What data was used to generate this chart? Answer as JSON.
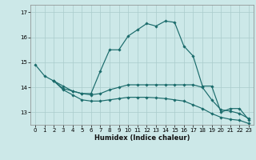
{
  "xlabel": "Humidex (Indice chaleur)",
  "background_color": "#cce8e8",
  "grid_color": "#aacccc",
  "line_color": "#1a6b6b",
  "xlim": [
    -0.5,
    23.5
  ],
  "ylim": [
    12.5,
    17.3
  ],
  "yticks": [
    13,
    14,
    15,
    16,
    17
  ],
  "xticks": [
    0,
    1,
    2,
    3,
    4,
    5,
    6,
    7,
    8,
    9,
    10,
    11,
    12,
    13,
    14,
    15,
    16,
    17,
    18,
    19,
    20,
    21,
    22,
    23
  ],
  "series1_x": [
    0,
    1,
    2,
    3,
    4,
    5,
    6,
    7,
    8,
    9,
    10,
    11,
    12,
    13,
    14,
    15,
    16,
    17,
    18,
    19,
    20,
    21,
    22,
    23
  ],
  "series1_y": [
    14.9,
    14.45,
    14.25,
    13.95,
    13.85,
    13.75,
    13.75,
    14.65,
    15.5,
    15.5,
    16.05,
    16.3,
    16.55,
    16.45,
    16.65,
    16.6,
    15.65,
    15.25,
    14.05,
    14.05,
    13.0,
    13.15,
    13.15,
    12.7
  ],
  "series2_x": [
    2,
    3,
    4,
    5,
    6,
    7,
    8,
    9,
    10,
    11,
    12,
    13,
    14,
    15,
    16,
    17,
    18,
    19,
    20,
    21,
    22,
    23
  ],
  "series2_y": [
    14.25,
    14.05,
    13.85,
    13.75,
    13.7,
    13.75,
    13.9,
    14.0,
    14.1,
    14.1,
    14.1,
    14.1,
    14.1,
    14.1,
    14.1,
    14.1,
    14.0,
    13.5,
    13.1,
    13.05,
    12.95,
    12.75
  ],
  "series3_x": [
    2,
    3,
    4,
    5,
    6,
    7,
    8,
    9,
    10,
    11,
    12,
    13,
    14,
    15,
    16,
    17,
    18,
    19,
    20,
    21,
    22,
    23
  ],
  "series3_y": [
    14.25,
    13.9,
    13.7,
    13.5,
    13.45,
    13.45,
    13.5,
    13.55,
    13.6,
    13.6,
    13.6,
    13.58,
    13.55,
    13.5,
    13.45,
    13.3,
    13.15,
    12.95,
    12.8,
    12.72,
    12.68,
    12.55
  ]
}
